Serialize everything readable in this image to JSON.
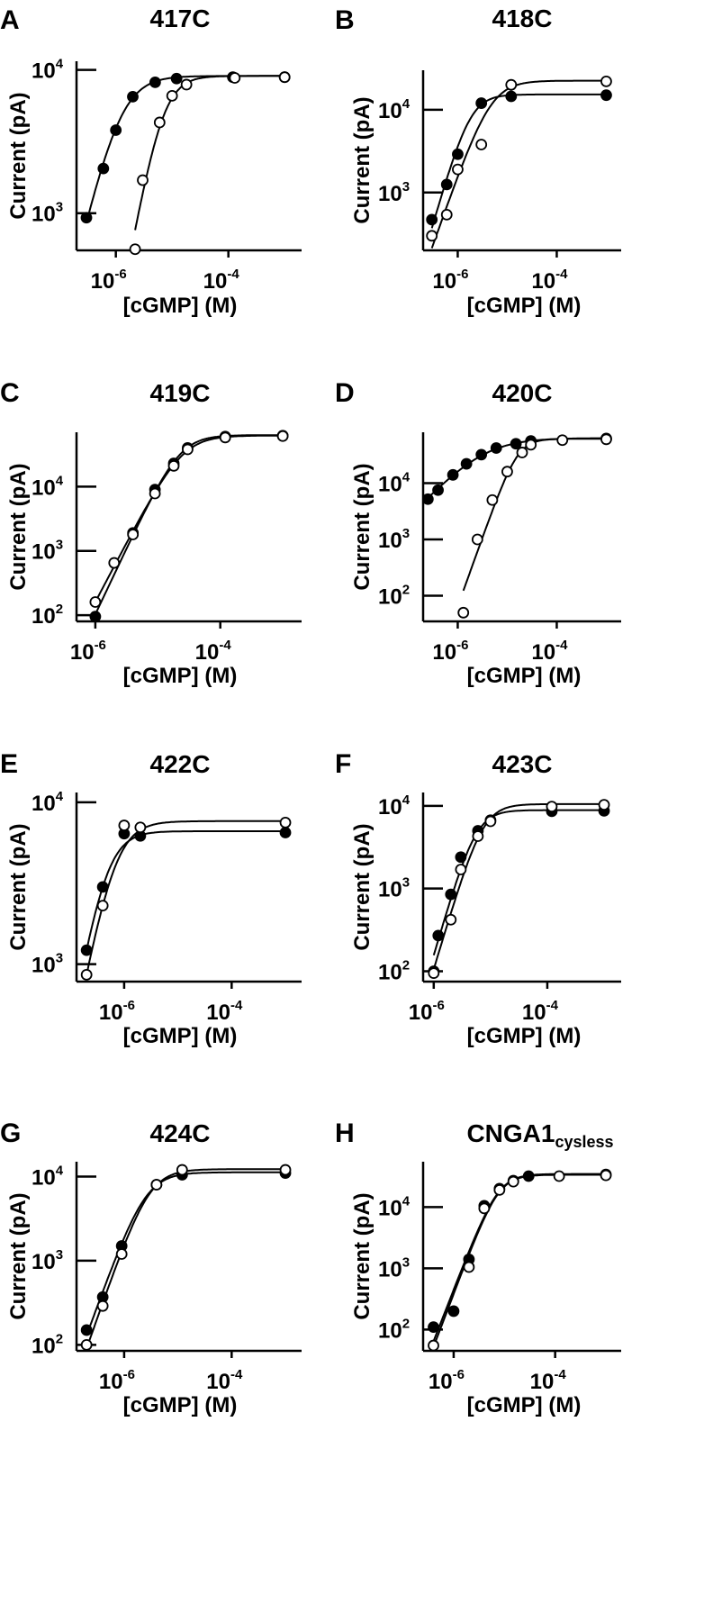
{
  "figure": {
    "xlabel": "[cGMP] (M)",
    "ylabel": "Current (pA)"
  },
  "chart_data": [
    {
      "panel": "A",
      "title": "417C",
      "type": "scatter",
      "xlabel": "[cGMP] (M)",
      "ylabel": "Current (pA)",
      "x_scale": "log",
      "y_scale": "log",
      "xlim": [
        2e-07,
        0.002
      ],
      "ylim": [
        550,
        11500
      ],
      "x_ticks": [
        {
          "base": "10",
          "exp": "-6",
          "v": 1e-06
        },
        {
          "base": "10",
          "exp": "-4",
          "v": 0.0001
        }
      ],
      "y_ticks": [
        {
          "base": "10",
          "exp": "3",
          "v": 1000
        },
        {
          "base": "10",
          "exp": "4",
          "v": 10000
        }
      ],
      "series": [
        {
          "marker": "filled",
          "points": [
            [
              3e-07,
              930
            ],
            [
              6e-07,
              2050
            ],
            [
              1e-06,
              3800
            ],
            [
              2e-06,
              6500
            ],
            [
              5e-06,
              8200
            ],
            [
              1.2e-05,
              8700
            ],
            [
              0.00012,
              8900
            ],
            [
              0.001,
              8900
            ]
          ]
        },
        {
          "marker": "open",
          "points": [
            [
              2.2e-06,
              560
            ],
            [
              3e-06,
              1700
            ],
            [
              6e-06,
              4300
            ],
            [
              1e-05,
              6600
            ],
            [
              1.8e-05,
              7900
            ],
            [
              0.00013,
              8800
            ],
            [
              0.001,
              8900
            ]
          ]
        }
      ]
    },
    {
      "panel": "B",
      "title": "418C",
      "type": "scatter",
      "xlabel": "[cGMP] (M)",
      "ylabel": "Current (pA)",
      "x_scale": "log",
      "y_scale": "log",
      "xlim": [
        2e-07,
        0.002
      ],
      "ylim": [
        200,
        30000
      ],
      "x_ticks": [
        {
          "base": "10",
          "exp": "-6",
          "v": 1e-06
        },
        {
          "base": "10",
          "exp": "-4",
          "v": 0.0001
        }
      ],
      "y_ticks": [
        {
          "base": "10",
          "exp": "3",
          "v": 1000
        },
        {
          "base": "10",
          "exp": "4",
          "v": 10000
        }
      ],
      "series": [
        {
          "marker": "filled",
          "points": [
            [
              3e-07,
              470
            ],
            [
              6e-07,
              1250
            ],
            [
              1e-06,
              2900
            ],
            [
              3e-06,
              12000
            ],
            [
              1.2e-05,
              14500
            ],
            [
              0.001,
              15000
            ]
          ]
        },
        {
          "marker": "open",
          "points": [
            [
              3e-07,
              300
            ],
            [
              6e-07,
              540
            ],
            [
              1e-06,
              1900
            ],
            [
              3e-06,
              3800
            ],
            [
              1.2e-05,
              20000
            ],
            [
              0.001,
              22000
            ]
          ]
        }
      ]
    },
    {
      "panel": "C",
      "title": "419C",
      "type": "scatter",
      "xlabel": "[cGMP] (M)",
      "ylabel": "Current (pA)",
      "x_scale": "log",
      "y_scale": "log",
      "xlim": [
        5e-07,
        0.002
      ],
      "ylim": [
        80,
        70000
      ],
      "x_ticks": [
        {
          "base": "10",
          "exp": "-6",
          "v": 1e-06
        },
        {
          "base": "10",
          "exp": "-4",
          "v": 0.0001
        }
      ],
      "y_ticks": [
        {
          "base": "10",
          "exp": "2",
          "v": 100
        },
        {
          "base": "10",
          "exp": "3",
          "v": 1000
        },
        {
          "base": "10",
          "exp": "4",
          "v": 10000
        }
      ],
      "series": [
        {
          "marker": "filled",
          "points": [
            [
              1e-06,
              95
            ],
            [
              4e-06,
              1900
            ],
            [
              9e-06,
              9000
            ],
            [
              1.8e-05,
              23000
            ],
            [
              3e-05,
              40000
            ],
            [
              0.00012,
              60000
            ],
            [
              0.001,
              62000
            ]
          ]
        },
        {
          "marker": "open",
          "points": [
            [
              1e-06,
              160
            ],
            [
              2e-06,
              650
            ],
            [
              4e-06,
              1800
            ],
            [
              9e-06,
              7800
            ],
            [
              1.8e-05,
              21000
            ],
            [
              3e-05,
              38000
            ],
            [
              0.00012,
              58000
            ],
            [
              0.001,
              61000
            ]
          ]
        }
      ]
    },
    {
      "panel": "D",
      "title": "420C",
      "type": "scatter",
      "xlabel": "[cGMP] (M)",
      "ylabel": "Current (pA)",
      "x_scale": "log",
      "y_scale": "log",
      "xlim": [
        2e-07,
        0.002
      ],
      "ylim": [
        35,
        80000
      ],
      "x_ticks": [
        {
          "base": "10",
          "exp": "-6",
          "v": 1e-06
        },
        {
          "base": "10",
          "exp": "-4",
          "v": 0.0001
        }
      ],
      "y_ticks": [
        {
          "base": "10",
          "exp": "2",
          "v": 100
        },
        {
          "base": "10",
          "exp": "3",
          "v": 1000
        },
        {
          "base": "10",
          "exp": "4",
          "v": 10000
        }
      ],
      "series": [
        {
          "marker": "filled",
          "points": [
            [
              2.5e-07,
              5200
            ],
            [
              4e-07,
              7500
            ],
            [
              8e-07,
              14000
            ],
            [
              1.5e-06,
              22000
            ],
            [
              3e-06,
              32000
            ],
            [
              6e-06,
              42000
            ],
            [
              1.5e-05,
              50000
            ],
            [
              3e-05,
              56000
            ],
            [
              0.001,
              62000
            ]
          ]
        },
        {
          "marker": "open",
          "points": [
            [
              1.3e-06,
              50
            ],
            [
              2.5e-06,
              1000
            ],
            [
              5e-06,
              5000
            ],
            [
              1e-05,
              16000
            ],
            [
              2e-05,
              35000
            ],
            [
              3e-05,
              48000
            ],
            [
              0.00013,
              58000
            ],
            [
              0.001,
              60000
            ]
          ]
        }
      ]
    },
    {
      "panel": "E",
      "title": "422C",
      "type": "scatter",
      "xlabel": "[cGMP] (M)",
      "ylabel": "Current (pA)",
      "x_scale": "log",
      "y_scale": "log",
      "xlim": [
        1.3e-07,
        0.002
      ],
      "ylim": [
        780,
        11500
      ],
      "x_ticks": [
        {
          "base": "10",
          "exp": "-6",
          "v": 1e-06
        },
        {
          "base": "10",
          "exp": "-4",
          "v": 0.0001
        }
      ],
      "y_ticks": [
        {
          "base": "10",
          "exp": "3",
          "v": 1000
        },
        {
          "base": "10",
          "exp": "4",
          "v": 10000
        }
      ],
      "series": [
        {
          "marker": "filled",
          "points": [
            [
              2e-07,
              1220
            ],
            [
              4e-07,
              3000
            ],
            [
              1e-06,
              6400
            ],
            [
              2e-06,
              6200
            ],
            [
              0.001,
              6500
            ]
          ]
        },
        {
          "marker": "open",
          "points": [
            [
              2e-07,
              860
            ],
            [
              4e-07,
              2300
            ],
            [
              1e-06,
              7200
            ],
            [
              2e-06,
              7000
            ],
            [
              0.001,
              7500
            ]
          ]
        }
      ]
    },
    {
      "panel": "F",
      "title": "423C",
      "type": "scatter",
      "xlabel": "[cGMP] (M)",
      "ylabel": "Current (pA)",
      "x_scale": "log",
      "y_scale": "log",
      "xlim": [
        6.5e-07,
        0.002
      ],
      "ylim": [
        75,
        14500
      ],
      "x_ticks": [
        {
          "base": "10",
          "exp": "-6",
          "v": 1e-06
        },
        {
          "base": "10",
          "exp": "-4",
          "v": 0.0001
        }
      ],
      "y_ticks": [
        {
          "base": "10",
          "exp": "2",
          "v": 100
        },
        {
          "base": "10",
          "exp": "3",
          "v": 1000
        },
        {
          "base": "10",
          "exp": "4",
          "v": 10000
        }
      ],
      "series": [
        {
          "marker": "filled",
          "points": [
            [
              1e-06,
              100
            ],
            [
              1.2e-06,
              270
            ],
            [
              2e-06,
              850
            ],
            [
              3e-06,
              2400
            ],
            [
              6e-06,
              5000
            ],
            [
              1e-05,
              6700
            ],
            [
              0.00012,
              8600
            ],
            [
              0.001,
              8700
            ]
          ]
        },
        {
          "marker": "open",
          "points": [
            [
              1e-06,
              95
            ],
            [
              2e-06,
              420
            ],
            [
              3e-06,
              1700
            ],
            [
              6e-06,
              4300
            ],
            [
              1e-05,
              6500
            ],
            [
              0.00012,
              9800
            ],
            [
              0.001,
              10300
            ]
          ]
        }
      ]
    },
    {
      "panel": "G",
      "title": "424C",
      "type": "scatter",
      "xlabel": "[cGMP] (M)",
      "ylabel": "Current (pA)",
      "x_scale": "log",
      "y_scale": "log",
      "xlim": [
        1.3e-07,
        0.002
      ],
      "ylim": [
        85,
        15000
      ],
      "x_ticks": [
        {
          "base": "10",
          "exp": "-6",
          "v": 1e-06
        },
        {
          "base": "10",
          "exp": "-4",
          "v": 0.0001
        }
      ],
      "y_ticks": [
        {
          "base": "10",
          "exp": "2",
          "v": 100
        },
        {
          "base": "10",
          "exp": "3",
          "v": 1000
        },
        {
          "base": "10",
          "exp": "4",
          "v": 10000
        }
      ],
      "series": [
        {
          "marker": "filled",
          "points": [
            [
              2e-07,
              150
            ],
            [
              4e-07,
              370
            ],
            [
              9e-07,
              1500
            ],
            [
              4e-06,
              8000
            ],
            [
              1.2e-05,
              10500
            ],
            [
              0.001,
              11000
            ]
          ]
        },
        {
          "marker": "open",
          "points": [
            [
              2e-07,
              100
            ],
            [
              4e-07,
              290
            ],
            [
              9e-07,
              1200
            ],
            [
              4e-06,
              8000
            ],
            [
              1.2e-05,
              12000
            ],
            [
              0.001,
              12000
            ]
          ]
        }
      ]
    },
    {
      "panel": "H",
      "title_main": "CNGA1",
      "title_sub": "cysless",
      "type": "scatter",
      "xlabel": "[cGMP] (M)",
      "ylabel": "Current (pA)",
      "x_scale": "log",
      "y_scale": "log",
      "xlim": [
        2.5e-07,
        0.002
      ],
      "ylim": [
        45,
        55000
      ],
      "x_ticks": [
        {
          "base": "10",
          "exp": "-6",
          "v": 1e-06
        },
        {
          "base": "10",
          "exp": "-4",
          "v": 0.0001
        }
      ],
      "y_ticks": [
        {
          "base": "10",
          "exp": "2",
          "v": 100
        },
        {
          "base": "10",
          "exp": "3",
          "v": 1000
        },
        {
          "base": "10",
          "exp": "4",
          "v": 10000
        }
      ],
      "series": [
        {
          "marker": "filled",
          "points": [
            [
              4e-07,
              110
            ],
            [
              1e-06,
              200
            ],
            [
              2e-06,
              1400
            ],
            [
              4e-06,
              10500
            ],
            [
              8e-06,
              20000
            ],
            [
              1.5e-05,
              27000
            ],
            [
              3e-05,
              32000
            ],
            [
              0.001,
              34000
            ]
          ]
        },
        {
          "marker": "open",
          "points": [
            [
              4e-07,
              55
            ],
            [
              2e-06,
              1050
            ],
            [
              4e-06,
              9500
            ],
            [
              8e-06,
              19000
            ],
            [
              1.5e-05,
              26000
            ],
            [
              0.00012,
              32000
            ],
            [
              0.001,
              33000
            ]
          ]
        }
      ]
    }
  ]
}
